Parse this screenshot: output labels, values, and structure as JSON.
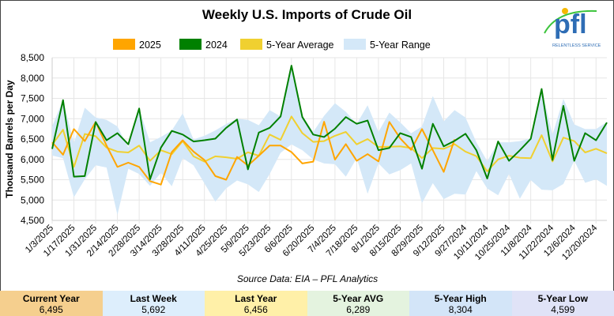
{
  "logo": {
    "text": "pfl",
    "tagline": "RELENTLESS SERVICE"
  },
  "chart_data": {
    "type": "line",
    "title": "Weekly U.S. Imports of Crude Oil",
    "ylabel": "Thousand Barrels per Day",
    "xlabel": "",
    "ylim": [
      4500,
      8500
    ],
    "yticks": [
      8500,
      8000,
      7500,
      7000,
      6500,
      6000,
      5500,
      5000,
      4500
    ],
    "ytick_labels": [
      "8,500",
      "8,000",
      "7,500",
      "7,000",
      "6,500",
      "6,000",
      "5,500",
      "5,000",
      "4,500"
    ],
    "grid": true,
    "legend_position": "top",
    "xtick_labels": [
      "1/3/2025",
      "1/17/2025",
      "1/31/2025",
      "2/14/2025",
      "2/28/2025",
      "3/14/2025",
      "3/28/2025",
      "4/11/2025",
      "4/25/2025",
      "5/9/2025",
      "5/23/2025",
      "6/6/2025",
      "6/20/2025",
      "7/4/2025",
      "7/18/2025",
      "8/1/2025",
      "8/15/2025",
      "8/29/2025",
      "9/12/2025",
      "9/27/2024",
      "10/11/2024",
      "10/25/2024",
      "11/8/2024",
      "11/22/2024",
      "12/6/2024",
      "12/20/2024"
    ],
    "weeks": 52,
    "series": [
      {
        "name": "2025",
        "color": "#ffa500",
        "values": [
          6420,
          6115,
          6745,
          6450,
          6920,
          6340,
          5815,
          5920,
          5815,
          5465,
          5380,
          6180,
          6470,
          6190,
          5985,
          5590,
          5500,
          6060,
          5850,
          6090,
          6340,
          6340,
          6180,
          5900,
          5945,
          6925,
          5995,
          6375,
          5965,
          6130,
          5950,
          6920,
          6515,
          6235,
          6745,
          6225,
          5692,
          6495
        ]
      },
      {
        "name": "2024",
        "color": "#008000",
        "values": [
          6257,
          7456,
          5575,
          5590,
          6918,
          6470,
          6645,
          6370,
          7250,
          5510,
          6290,
          6700,
          6610,
          6440,
          6470,
          6510,
          6775,
          6980,
          5755,
          6660,
          6775,
          7055,
          8304,
          7040,
          6610,
          6550,
          6755,
          7040,
          6875,
          6955,
          6225,
          6280,
          6645,
          6550,
          5770,
          6875,
          6320,
          6456,
          6630,
          6225,
          5530,
          6440,
          5965,
          6225,
          6505,
          7730,
          5985,
          7315,
          5965,
          6645,
          6470,
          6905
        ]
      },
      {
        "name": "5-Year Average",
        "color": "#f0d030",
        "values": [
          6355,
          6730,
          5815,
          6625,
          6570,
          6290,
          6190,
          6170,
          6340,
          5965,
          6225,
          6130,
          6450,
          6075,
          5945,
          6075,
          6050,
          6015,
          6175,
          6090,
          6610,
          6480,
          7055,
          6645,
          6430,
          6450,
          6580,
          6675,
          6370,
          6500,
          6305,
          6310,
          6320,
          6280,
          6030,
          6280,
          6260,
          6375,
          6190,
          6080,
          5705,
          6000,
          6090,
          6040,
          6030,
          6595,
          5950,
          6535,
          6450,
          6170,
          6260,
          6150
        ]
      }
    ],
    "range": {
      "name": "5-Year Range",
      "color": "#d4e8f8",
      "upper": [
        6810,
        7460,
        6400,
        7270,
        7030,
        6970,
        6810,
        6290,
        7250,
        6420,
        6550,
        6710,
        7130,
        6490,
        6580,
        6710,
        6870,
        7000,
        6970,
        6840,
        7210,
        7055,
        8304,
        7070,
        6675,
        7070,
        7380,
        7170,
        6875,
        7330,
        6675,
        7150,
        6910,
        6640,
        6810,
        7555,
        6935,
        7210,
        7030,
        6420,
        5955,
        6420,
        6420,
        6450,
        6520,
        7730,
        6610,
        7490,
        6860,
        6745,
        6745,
        6920
      ],
      "lower": [
        6095,
        6030,
        5070,
        5510,
        5855,
        5800,
        4635,
        5770,
        5640,
        5350,
        5670,
        5340,
        6030,
        5855,
        5410,
        4960,
        5290,
        5480,
        5385,
        5200,
        5640,
        6160,
        6370,
        6225,
        6000,
        5900,
        5880,
        5575,
        6030,
        5155,
        5900,
        5630,
        5735,
        5900,
        4925,
        5415,
        5025,
        5155,
        5135,
        5710,
        5285,
        5120,
        5640,
        5035,
        5490,
        5255,
        5240,
        5395,
        5965,
        5425,
        5510,
        5350
      ]
    },
    "source": "Source Data: EIA – PFL Analytics"
  },
  "stats": [
    {
      "label": "Current Year",
      "value": "6,495",
      "color": "#f5cf8e"
    },
    {
      "label": "Last Week",
      "value": "5,692",
      "color": "#ddeefc"
    },
    {
      "label": "Last Year",
      "value": "6,456",
      "color": "#fff0a8"
    },
    {
      "label": "5-Year AVG",
      "value": "6,289",
      "color": "#e4f3df"
    },
    {
      "label": "5-Year High",
      "value": "8,304",
      "color": "#d3e5f8"
    },
    {
      "label": "5-Year Low",
      "value": "4,599",
      "color": "#e0e3f7"
    }
  ]
}
